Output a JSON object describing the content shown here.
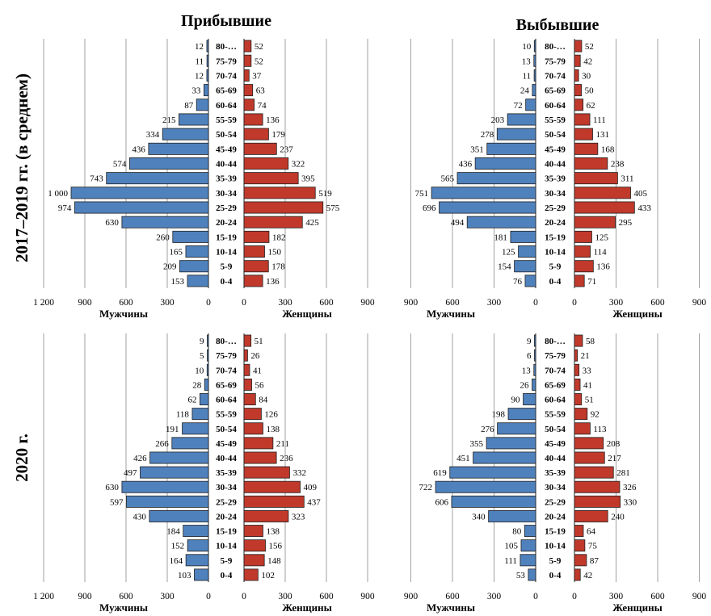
{
  "column_titles": [
    "Прибывшие",
    "Выбывшие"
  ],
  "row_labels": [
    "2017–2019 гг. (в среднем)",
    "2020 г."
  ],
  "colors": {
    "male": "#4f81bd",
    "female": "#c0392b",
    "bar_outline": "#1f1f1f"
  },
  "chart_data": [
    {
      "type": "bar",
      "orientation": "population-pyramid",
      "title": "Прибывшие",
      "period": "2017–2019 гг. (в среднем)",
      "categories": [
        "0-4",
        "5-9",
        "10-14",
        "15-19",
        "20-24",
        "25-29",
        "30-34",
        "35-39",
        "40-44",
        "45-49",
        "50-54",
        "55-59",
        "60-64",
        "65-69",
        "70-74",
        "75-79",
        "80-…"
      ],
      "series": [
        {
          "name": "Мужчины",
          "values": [
            153,
            209,
            165,
            260,
            630,
            974,
            1000,
            743,
            574,
            436,
            334,
            215,
            87,
            33,
            12,
            11,
            12
          ],
          "value_labels": [
            "153",
            "209",
            "165",
            "260",
            "630",
            "974",
            "1 000",
            "743",
            "574",
            "436",
            "334",
            "215",
            "87",
            "33",
            "12",
            "11",
            "12"
          ]
        },
        {
          "name": "Женщины",
          "values": [
            136,
            178,
            150,
            182,
            425,
            575,
            519,
            395,
            322,
            237,
            179,
            136,
            74,
            63,
            37,
            52,
            52
          ],
          "value_labels": [
            "136",
            "178",
            "150",
            "182",
            "425",
            "575",
            "519",
            "395",
            "322",
            "237",
            "179",
            "136",
            "74",
            "63",
            "37",
            "52",
            "52"
          ]
        }
      ],
      "xlim_male": [
        0,
        1200
      ],
      "xlim_female": [
        0,
        900
      ],
      "male_ticks": [
        "1 200",
        "900",
        "600",
        "300",
        "0"
      ],
      "female_ticks": [
        "0",
        "300",
        "600",
        "900"
      ],
      "male_ticks_v": [
        1200,
        900,
        600,
        300,
        0
      ],
      "female_ticks_v": [
        0,
        300,
        600,
        900
      ],
      "xlabel_male": "Мужчины",
      "xlabel_female": "Женщины",
      "grid": true
    },
    {
      "type": "bar",
      "orientation": "population-pyramid",
      "title": "Выбывшие",
      "period": "2017–2019 гг. (в среднем)",
      "categories": [
        "0-4",
        "5-9",
        "10-14",
        "15-19",
        "20-24",
        "25-29",
        "30-34",
        "35-39",
        "40-44",
        "45-49",
        "50-54",
        "55-59",
        "60-64",
        "65-69",
        "70-74",
        "75-79",
        "80-…"
      ],
      "series": [
        {
          "name": "Мужчины",
          "values": [
            76,
            154,
            125,
            181,
            494,
            696,
            751,
            565,
            436,
            351,
            278,
            203,
            72,
            24,
            11,
            13,
            10
          ],
          "value_labels": [
            "76",
            "154",
            "125",
            "181",
            "494",
            "696",
            "751",
            "565",
            "436",
            "351",
            "278",
            "203",
            "72",
            "24",
            "11",
            "13",
            "10"
          ]
        },
        {
          "name": "Женщины",
          "values": [
            71,
            136,
            114,
            125,
            295,
            433,
            405,
            311,
            238,
            168,
            131,
            111,
            62,
            50,
            30,
            42,
            52
          ],
          "value_labels": [
            "71",
            "136",
            "114",
            "125",
            "295",
            "433",
            "405",
            "311",
            "238",
            "168",
            "131",
            "111",
            "62",
            "50",
            "30",
            "42",
            "52"
          ]
        }
      ],
      "xlim_male": [
        0,
        900
      ],
      "xlim_female": [
        0,
        900
      ],
      "male_ticks": [
        "900",
        "600",
        "300",
        "0"
      ],
      "female_ticks": [
        "0",
        "300",
        "600",
        "900"
      ],
      "male_ticks_v": [
        900,
        600,
        300,
        0
      ],
      "female_ticks_v": [
        0,
        300,
        600,
        900
      ],
      "xlabel_male": "Мужчины",
      "xlabel_female": "Женщины",
      "grid": true
    },
    {
      "type": "bar",
      "orientation": "population-pyramid",
      "title": "Прибывшие",
      "period": "2020 г.",
      "categories": [
        "0-4",
        "5-9",
        "10-14",
        "15-19",
        "20-24",
        "25-29",
        "30-34",
        "35-39",
        "40-44",
        "45-49",
        "50-54",
        "55-59",
        "60-64",
        "65-69",
        "70-74",
        "75-79",
        "80-…"
      ],
      "series": [
        {
          "name": "Мужчины",
          "values": [
            103,
            164,
            152,
            184,
            430,
            597,
            630,
            497,
            426,
            266,
            191,
            118,
            62,
            28,
            10,
            5,
            9
          ],
          "value_labels": [
            "103",
            "164",
            "152",
            "184",
            "430",
            "597",
            "630",
            "497",
            "426",
            "266",
            "191",
            "118",
            "62",
            "28",
            "10",
            "5",
            "9"
          ]
        },
        {
          "name": "Женщины",
          "values": [
            102,
            148,
            156,
            138,
            323,
            437,
            409,
            332,
            236,
            211,
            138,
            126,
            84,
            56,
            41,
            26,
            51
          ],
          "value_labels": [
            "102",
            "148",
            "156",
            "138",
            "323",
            "437",
            "409",
            "332",
            "236",
            "211",
            "138",
            "126",
            "84",
            "56",
            "41",
            "26",
            "51"
          ]
        }
      ],
      "xlim_male": [
        0,
        1200
      ],
      "xlim_female": [
        0,
        900
      ],
      "male_ticks": [
        "1 200",
        "900",
        "600",
        "300",
        "0"
      ],
      "female_ticks": [
        "0",
        "300",
        "600",
        "900"
      ],
      "male_ticks_v": [
        1200,
        900,
        600,
        300,
        0
      ],
      "female_ticks_v": [
        0,
        300,
        600,
        900
      ],
      "xlabel_male": "Мужчины",
      "xlabel_female": "Женщины",
      "grid": true
    },
    {
      "type": "bar",
      "orientation": "population-pyramid",
      "title": "Выбывшие",
      "period": "2020 г.",
      "categories": [
        "0-4",
        "5-9",
        "10-14",
        "15-19",
        "20-24",
        "25-29",
        "30-34",
        "35-39",
        "40-44",
        "45-49",
        "50-54",
        "55-59",
        "60-64",
        "65-69",
        "70-74",
        "75-79",
        "80-…"
      ],
      "series": [
        {
          "name": "Мужчины",
          "values": [
            53,
            111,
            105,
            80,
            340,
            606,
            722,
            619,
            451,
            355,
            276,
            198,
            90,
            26,
            13,
            6,
            9
          ],
          "value_labels": [
            "53",
            "111",
            "105",
            "80",
            "340",
            "606",
            "722",
            "619",
            "451",
            "355",
            "276",
            "198",
            "90",
            "26",
            "13",
            "6",
            "9"
          ]
        },
        {
          "name": "Женщины",
          "values": [
            42,
            87,
            75,
            64,
            240,
            330,
            326,
            281,
            217,
            208,
            113,
            92,
            51,
            41,
            33,
            21,
            58
          ],
          "value_labels": [
            "42",
            "87",
            "75",
            "64",
            "240",
            "330",
            "326",
            "281",
            "217",
            "208",
            "113",
            "92",
            "51",
            "41",
            "33",
            "21",
            "58"
          ]
        }
      ],
      "xlim_male": [
        0,
        900
      ],
      "xlim_female": [
        0,
        900
      ],
      "male_ticks": [
        "900",
        "600",
        "300",
        "0"
      ],
      "female_ticks": [
        "0",
        "300",
        "600",
        "900"
      ],
      "male_ticks_v": [
        900,
        600,
        300,
        0
      ],
      "female_ticks_v": [
        0,
        300,
        600,
        900
      ],
      "xlabel_male": "Мужчины",
      "xlabel_female": "Женщины",
      "grid": true
    }
  ]
}
